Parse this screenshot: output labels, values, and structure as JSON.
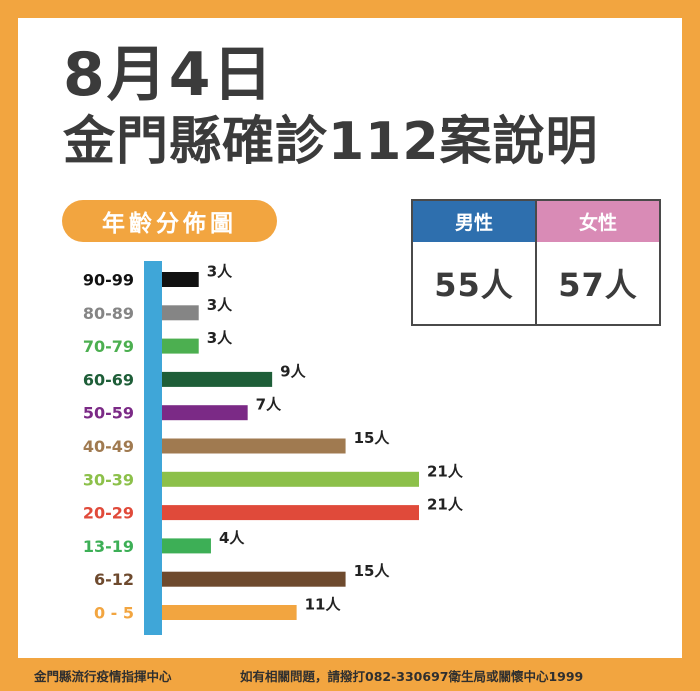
{
  "header": {
    "date": "8月4日",
    "headline": "金門縣確診112案說明"
  },
  "section_label": "年齡分佈圖",
  "gender": {
    "male_label": "男性",
    "male_value": "55人",
    "female_label": "女性",
    "female_value": "57人",
    "male_color": "#2e6fae",
    "female_color": "#d98bb6"
  },
  "chart_data": {
    "type": "bar",
    "orientation": "horizontal",
    "categories": [
      "90-99",
      "80-89",
      "70-79",
      "60-69",
      "50-59",
      "40-49",
      "30-39",
      "20-29",
      "13-19",
      "6-12",
      "0 - 5"
    ],
    "values": [
      3,
      3,
      3,
      9,
      7,
      15,
      21,
      21,
      4,
      15,
      11
    ],
    "value_labels": [
      "3人",
      "3人",
      "3人",
      "9人",
      "7人",
      "15人",
      "21人",
      "21人",
      "4人",
      "15人",
      "11人"
    ],
    "colors": [
      "#111111",
      "#858585",
      "#4caf50",
      "#1e5e38",
      "#7b2a86",
      "#a07a50",
      "#8cc04a",
      "#e04a3a",
      "#3daf56",
      "#6e4a2e",
      "#f2a540"
    ],
    "axis_color": "#3fa6d8",
    "xlim": [
      0,
      21
    ]
  },
  "footer": {
    "left": "金門縣流行疫情指揮中心",
    "right": "如有相關問題，請撥打082-330697衛生局或關懷中心1999"
  }
}
